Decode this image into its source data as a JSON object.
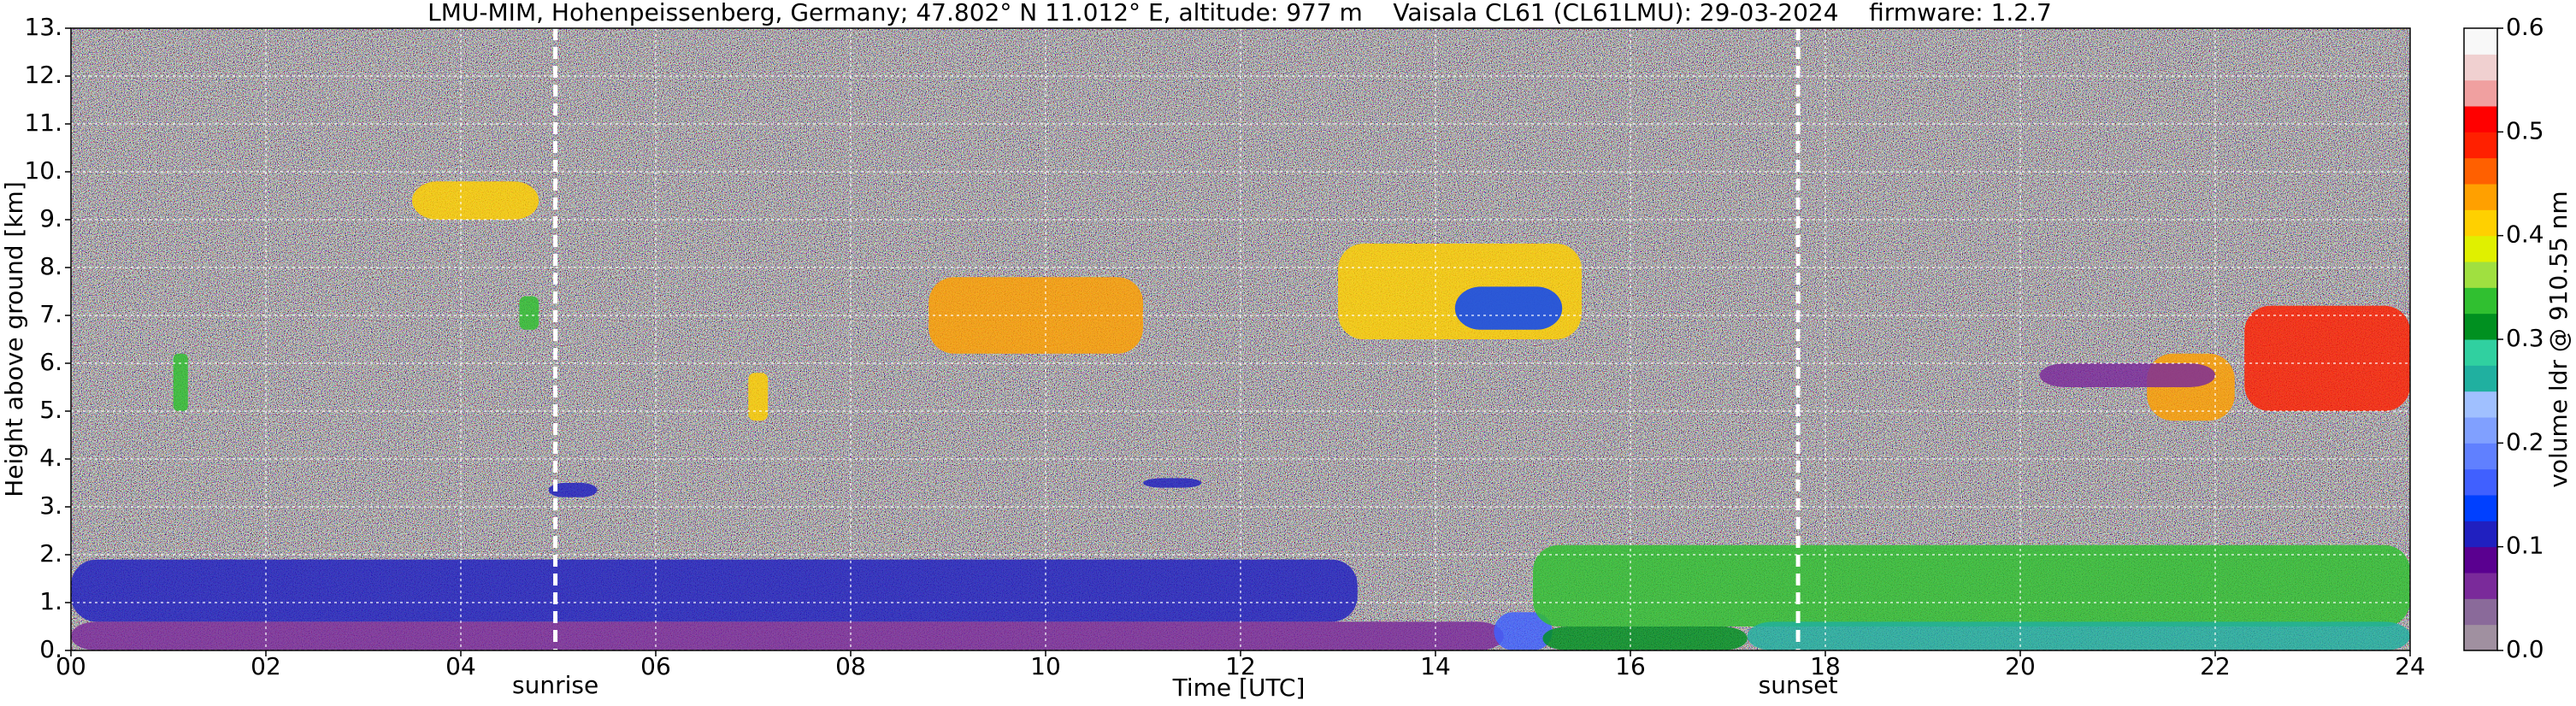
{
  "chart_data": {
    "type": "heatmap",
    "title": "LMU-MIM, Hohenpeissenberg, Germany; 47.802° N 11.012° E, altitude: 977 m    Vaisala CL61 (CL61LMU): 29-03-2024    firmware: 1.2.7",
    "x_label": "Time [UTC]",
    "y_label": "Height above ground [km]",
    "xlim": [
      0,
      24
    ],
    "xticks": [
      {
        "value": 0,
        "label": "00"
      },
      {
        "value": 2,
        "label": "02"
      },
      {
        "value": 4,
        "label": "04"
      },
      {
        "value": 6,
        "label": "06"
      },
      {
        "value": 8,
        "label": "08"
      },
      {
        "value": 10,
        "label": "10"
      },
      {
        "value": 12,
        "label": "12"
      },
      {
        "value": 14,
        "label": "14"
      },
      {
        "value": 16,
        "label": "16"
      },
      {
        "value": 18,
        "label": "18"
      },
      {
        "value": 20,
        "label": "20"
      },
      {
        "value": 22,
        "label": "22"
      },
      {
        "value": 24,
        "label": "24"
      }
    ],
    "ylim": [
      0,
      13
    ],
    "yticks": [
      {
        "value": 0,
        "label": "0."
      },
      {
        "value": 1,
        "label": "1."
      },
      {
        "value": 2,
        "label": "2."
      },
      {
        "value": 3,
        "label": "3."
      },
      {
        "value": 4,
        "label": "4."
      },
      {
        "value": 5,
        "label": "5."
      },
      {
        "value": 6,
        "label": "6."
      },
      {
        "value": 7,
        "label": "7."
      },
      {
        "value": 8,
        "label": "8."
      },
      {
        "value": 9,
        "label": "9."
      },
      {
        "value": 10,
        "label": "10."
      },
      {
        "value": 11,
        "label": "11."
      },
      {
        "value": 12,
        "label": "12."
      },
      {
        "value": 13,
        "label": "13."
      }
    ],
    "grid": true,
    "annotations": [
      {
        "text": "sunrise",
        "x": 4.97
      },
      {
        "text": "sunset",
        "x": 17.72
      }
    ],
    "colorbar": {
      "label": "volume ldr @ 910.55 nm",
      "lim": [
        0,
        0.6
      ],
      "ticks": [
        {
          "value": 0,
          "label": "0.0"
        },
        {
          "value": 0.1,
          "label": "0.1"
        },
        {
          "value": 0.2,
          "label": "0.2"
        },
        {
          "value": 0.3,
          "label": "0.3"
        },
        {
          "value": 0.4,
          "label": "0.4"
        },
        {
          "value": 0.5,
          "label": "0.5"
        },
        {
          "value": 0.6,
          "label": "0.6"
        }
      ],
      "colors": [
        "#a090a0",
        "#8a6a9a",
        "#7a2a9a",
        "#5a0090",
        "#2020c0",
        "#0040ff",
        "#4060ff",
        "#6080ff",
        "#80a0ff",
        "#a0c0ff",
        "#20b0a0",
        "#30d0a0",
        "#009020",
        "#30c030",
        "#a0e040",
        "#e0f000",
        "#ffd000",
        "#ffa000",
        "#ff6000",
        "#ff2000",
        "#ff0000",
        "#f0a0a0",
        "#f0d0d0",
        "#f8f8f8"
      ]
    },
    "regions": [
      {
        "x": [
          0,
          13.2
        ],
        "y": [
          0.6,
          1.9
        ],
        "value": 0.12
      },
      {
        "x": [
          0,
          14.7
        ],
        "y": [
          0,
          0.6
        ],
        "value": 0.06
      },
      {
        "x": [
          14.6,
          15.2
        ],
        "y": [
          0,
          0.8
        ],
        "value": 0.16
      },
      {
        "x": [
          15,
          24
        ],
        "y": [
          0.5,
          2.2
        ],
        "value": 0.33
      },
      {
        "x": [
          15.1,
          17.2
        ],
        "y": [
          0,
          0.5
        ],
        "value": 0.31
      },
      {
        "x": [
          17.2,
          24
        ],
        "y": [
          0,
          0.6
        ],
        "value": 0.27
      },
      {
        "x": [
          3.5,
          4.8
        ],
        "y": [
          9.0,
          9.8
        ],
        "value": 0.42
      },
      {
        "x": [
          8.8,
          11.0
        ],
        "y": [
          6.2,
          7.8
        ],
        "value": 0.43
      },
      {
        "x": [
          13.0,
          15.5
        ],
        "y": [
          6.5,
          8.5
        ],
        "value": 0.42
      },
      {
        "x": [
          14.2,
          15.3
        ],
        "y": [
          6.7,
          7.6
        ],
        "value": 0.13
      },
      {
        "x": [
          21.3,
          22.2
        ],
        "y": [
          4.8,
          6.2
        ],
        "value": 0.44
      },
      {
        "x": [
          22.3,
          24
        ],
        "y": [
          5.0,
          7.2
        ],
        "value": 0.49
      },
      {
        "x": [
          20.2,
          22.0
        ],
        "y": [
          5.5,
          6.0
        ],
        "value": 0.07
      },
      {
        "x": [
          4.9,
          5.4
        ],
        "y": [
          3.2,
          3.5
        ],
        "value": 0.12
      },
      {
        "x": [
          11.0,
          11.6
        ],
        "y": [
          3.4,
          3.6
        ],
        "value": 0.12
      },
      {
        "x": [
          6.95,
          7.15
        ],
        "y": [
          4.8,
          5.8
        ],
        "value": 0.42
      },
      {
        "x": [
          1.05,
          1.2
        ],
        "y": [
          5.0,
          6.2
        ],
        "value": 0.34
      },
      {
        "x": [
          4.6,
          4.8
        ],
        "y": [
          6.7,
          7.4
        ],
        "value": 0.34
      }
    ]
  }
}
